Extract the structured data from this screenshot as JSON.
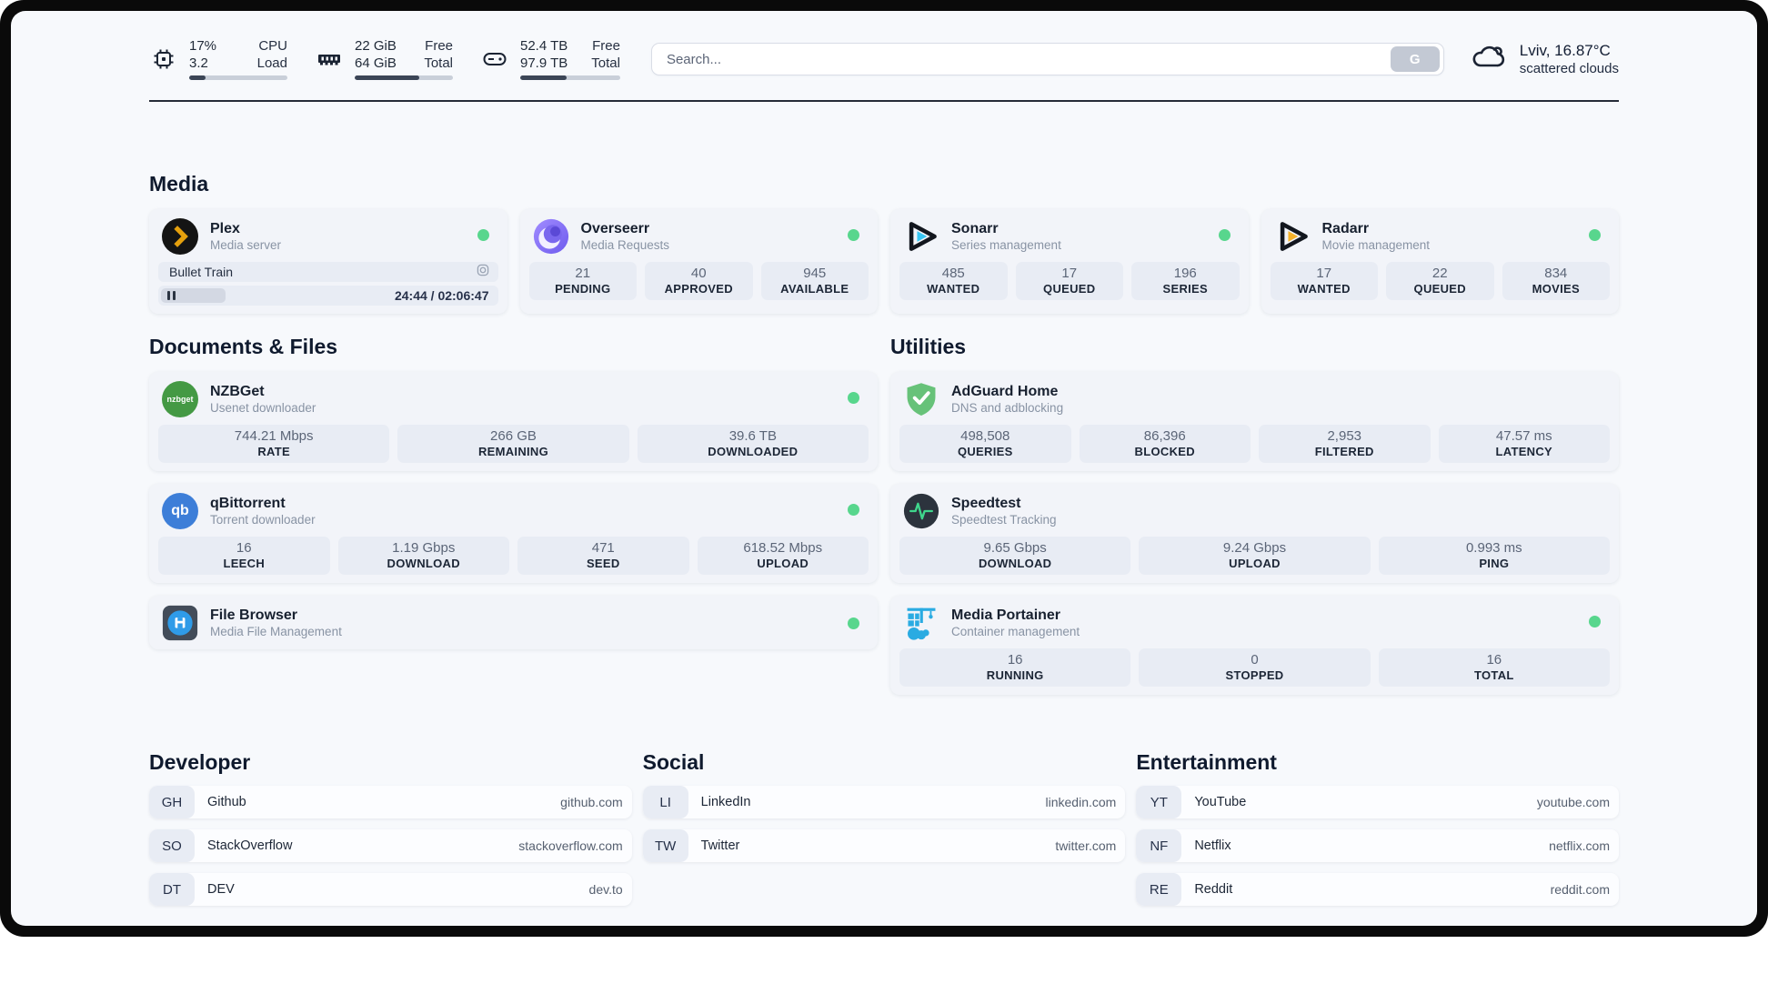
{
  "header": {
    "cpu": {
      "value_top": "17%",
      "value_bottom": "3.2",
      "label_top": "CPU",
      "label_bottom": "Load",
      "progress_pct": 17
    },
    "memory": {
      "value_top": "22 GiB",
      "value_bottom": "64 GiB",
      "label_top": "Free",
      "label_bottom": "Total",
      "progress_pct": 66
    },
    "disk": {
      "value_top": "52.4 TB",
      "value_bottom": "97.9 TB",
      "label_top": "Free",
      "label_bottom": "Total",
      "progress_pct": 46
    },
    "search": {
      "placeholder": "Search...",
      "button_label": "G"
    },
    "weather": {
      "summary": "Lviv, 16.87°C",
      "condition": "scattered clouds"
    }
  },
  "sections": {
    "media": {
      "title": "Media"
    },
    "documents": {
      "title": "Documents & Files"
    },
    "utilities": {
      "title": "Utilities"
    },
    "developer": {
      "title": "Developer"
    },
    "social": {
      "title": "Social"
    },
    "entertainment": {
      "title": "Entertainment"
    }
  },
  "apps": {
    "plex": {
      "name": "Plex",
      "subtitle": "Media server",
      "now_playing": "Bullet Train",
      "time": "24:44 / 02:06:47",
      "progress_pct": 19
    },
    "overseerr": {
      "name": "Overseerr",
      "subtitle": "Media Requests",
      "stats": [
        {
          "value": "21",
          "label": "PENDING"
        },
        {
          "value": "40",
          "label": "APPROVED"
        },
        {
          "value": "945",
          "label": "AVAILABLE"
        }
      ]
    },
    "sonarr": {
      "name": "Sonarr",
      "subtitle": "Series management",
      "stats": [
        {
          "value": "485",
          "label": "WANTED"
        },
        {
          "value": "17",
          "label": "QUEUED"
        },
        {
          "value": "196",
          "label": "SERIES"
        }
      ]
    },
    "radarr": {
      "name": "Radarr",
      "subtitle": "Movie management",
      "stats": [
        {
          "value": "17",
          "label": "WANTED"
        },
        {
          "value": "22",
          "label": "QUEUED"
        },
        {
          "value": "834",
          "label": "MOVIES"
        }
      ]
    },
    "nzbget": {
      "name": "NZBGet",
      "subtitle": "Usenet downloader",
      "icon_text": "nzbget",
      "stats": [
        {
          "value": "744.21 Mbps",
          "label": "RATE"
        },
        {
          "value": "266 GB",
          "label": "REMAINING"
        },
        {
          "value": "39.6 TB",
          "label": "DOWNLOADED"
        }
      ]
    },
    "qbittorrent": {
      "name": "qBittorrent",
      "subtitle": "Torrent downloader",
      "icon_text": "qb",
      "stats": [
        {
          "value": "16",
          "label": "LEECH"
        },
        {
          "value": "1.19 Gbps",
          "label": "DOWNLOAD"
        },
        {
          "value": "471",
          "label": "SEED"
        },
        {
          "value": "618.52 Mbps",
          "label": "UPLOAD"
        }
      ]
    },
    "filebrowser": {
      "name": "File Browser",
      "subtitle": "Media File Management"
    },
    "adguard": {
      "name": "AdGuard Home",
      "subtitle": "DNS and adblocking",
      "stats": [
        {
          "value": "498,508",
          "label": "QUERIES"
        },
        {
          "value": "86,396",
          "label": "BLOCKED"
        },
        {
          "value": "2,953",
          "label": "FILTERED"
        },
        {
          "value": "47.57 ms",
          "label": "LATENCY"
        }
      ]
    },
    "speedtest": {
      "name": "Speedtest",
      "subtitle": "Speedtest Tracking",
      "stats": [
        {
          "value": "9.65 Gbps",
          "label": "DOWNLOAD"
        },
        {
          "value": "9.24 Gbps",
          "label": "UPLOAD"
        },
        {
          "value": "0.993 ms",
          "label": "PING"
        }
      ]
    },
    "portainer": {
      "name": "Media Portainer",
      "subtitle": "Container management",
      "stats": [
        {
          "value": "16",
          "label": "RUNNING"
        },
        {
          "value": "0",
          "label": "STOPPED"
        },
        {
          "value": "16",
          "label": "TOTAL"
        }
      ]
    }
  },
  "bookmarks": {
    "developer": [
      {
        "abbr": "GH",
        "name": "Github",
        "url": "github.com"
      },
      {
        "abbr": "SO",
        "name": "StackOverflow",
        "url": "stackoverflow.com"
      },
      {
        "abbr": "DT",
        "name": "DEV",
        "url": "dev.to"
      }
    ],
    "social": [
      {
        "abbr": "LI",
        "name": "LinkedIn",
        "url": "linkedin.com"
      },
      {
        "abbr": "TW",
        "name": "Twitter",
        "url": "twitter.com"
      }
    ],
    "entertainment": [
      {
        "abbr": "YT",
        "name": "YouTube",
        "url": "youtube.com"
      },
      {
        "abbr": "NF",
        "name": "Netflix",
        "url": "netflix.com"
      },
      {
        "abbr": "RE",
        "name": "Reddit",
        "url": "reddit.com"
      }
    ]
  },
  "colors": {
    "status_online": "#58d68d",
    "plex": "#e5a00d",
    "sonarr": "#38c6f4",
    "radarr": "#f7b32b",
    "overseerr": "#7a67ee",
    "nzbget": "#449944",
    "qbittorrent": "#3d7ed8",
    "filebrowser": "#2f9be8",
    "adguard": "#67c279",
    "speedtest_pulse": "#3fd68c",
    "portainer": "#2aabe2"
  }
}
